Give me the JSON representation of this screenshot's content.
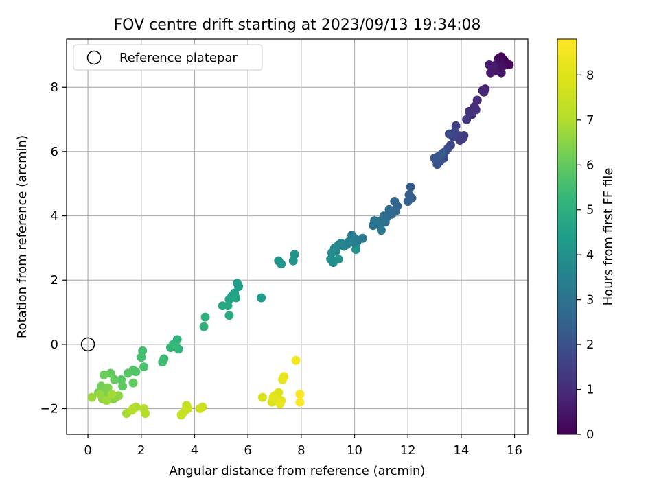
{
  "chart_data": {
    "type": "scatter",
    "title": "FOV centre drift starting at 2023/09/13 19:34:08",
    "xlabel": "Angular distance from reference (arcmin)",
    "ylabel": "Rotation from reference (arcmin)",
    "xlim": [
      -0.8,
      16.5
    ],
    "ylim": [
      -2.8,
      9.5
    ],
    "xticks": [
      0,
      2,
      4,
      6,
      8,
      10,
      12,
      14,
      16
    ],
    "yticks": [
      -2,
      0,
      2,
      4,
      6,
      8
    ],
    "grid": true,
    "legend": {
      "position": "top-left",
      "label": "Reference platepar",
      "marker": "open-circle"
    },
    "reference_point": {
      "x": 0,
      "y": 0
    },
    "colorbar": {
      "label": "Hours from first FF file",
      "colormap": "viridis",
      "range": [
        0,
        8.8
      ],
      "ticks": [
        0,
        1,
        2,
        3,
        4,
        5,
        6,
        7,
        8
      ]
    },
    "series": [
      {
        "points": [
          [
            15.6,
            8.85,
            0.0
          ],
          [
            15.7,
            8.75,
            0.05
          ],
          [
            15.5,
            8.95,
            0.1
          ],
          [
            15.8,
            8.7,
            0.15
          ],
          [
            15.4,
            8.9,
            0.2
          ],
          [
            15.45,
            8.8,
            0.25
          ],
          [
            15.55,
            8.65,
            0.3
          ],
          [
            15.3,
            8.7,
            0.35
          ],
          [
            15.35,
            8.6,
            0.4
          ],
          [
            15.5,
            8.45,
            0.45
          ],
          [
            15.25,
            8.5,
            0.5
          ],
          [
            15.1,
            8.45,
            0.55
          ],
          [
            15.2,
            8.65,
            0.6
          ],
          [
            15.05,
            8.7,
            0.65
          ],
          [
            14.9,
            7.95,
            0.8
          ],
          [
            14.8,
            7.9,
            0.85
          ],
          [
            14.85,
            7.85,
            0.9
          ],
          [
            14.6,
            7.6,
            1.0
          ],
          [
            14.5,
            7.4,
            1.05
          ],
          [
            14.55,
            7.3,
            1.1
          ],
          [
            14.3,
            7.25,
            1.15
          ],
          [
            14.4,
            7.15,
            1.2
          ],
          [
            14.2,
            7.0,
            1.25
          ],
          [
            14.1,
            6.5,
            1.35
          ],
          [
            14.05,
            6.4,
            1.4
          ],
          [
            13.95,
            6.35,
            1.45
          ],
          [
            13.9,
            6.5,
            1.5
          ],
          [
            13.8,
            6.8,
            1.55
          ],
          [
            13.75,
            6.6,
            1.6
          ],
          [
            13.7,
            6.45,
            1.65
          ],
          [
            13.6,
            6.2,
            1.7
          ],
          [
            13.5,
            6.1,
            1.75
          ],
          [
            13.55,
            6.55,
            1.8
          ],
          [
            13.4,
            6.0,
            1.85
          ],
          [
            13.35,
            5.8,
            1.9
          ],
          [
            13.2,
            5.7,
            1.95
          ],
          [
            13.1,
            5.6,
            2.0
          ],
          [
            13.0,
            5.8,
            2.05
          ],
          [
            13.15,
            5.85,
            2.1
          ],
          [
            13.05,
            5.75,
            2.15
          ],
          [
            13.3,
            5.95,
            2.2
          ],
          [
            12.1,
            4.9,
            2.3
          ],
          [
            12.05,
            4.65,
            2.35
          ],
          [
            12.15,
            4.55,
            2.4
          ],
          [
            12.0,
            4.45,
            2.45
          ],
          [
            11.6,
            4.3,
            2.5
          ],
          [
            11.5,
            4.45,
            2.55
          ],
          [
            11.55,
            4.15,
            2.6
          ],
          [
            11.4,
            4.05,
            2.65
          ],
          [
            11.3,
            4.2,
            2.7
          ],
          [
            11.2,
            3.95,
            2.75
          ],
          [
            11.1,
            4.0,
            2.8
          ],
          [
            11.15,
            3.8,
            2.85
          ],
          [
            11.0,
            3.85,
            2.9
          ],
          [
            10.95,
            3.7,
            2.95
          ],
          [
            10.85,
            3.75,
            3.0
          ],
          [
            10.7,
            3.7,
            3.05
          ],
          [
            10.75,
            3.85,
            3.1
          ],
          [
            11.0,
            3.55,
            3.15
          ],
          [
            10.3,
            3.3,
            3.2
          ],
          [
            10.1,
            3.2,
            3.25
          ],
          [
            10.0,
            3.3,
            3.3
          ],
          [
            9.9,
            3.4,
            3.35
          ],
          [
            10.05,
            3.1,
            3.4
          ],
          [
            9.8,
            3.2,
            3.45
          ],
          [
            9.7,
            3.1,
            3.5
          ],
          [
            9.6,
            3.05,
            3.55
          ],
          [
            9.5,
            3.15,
            3.6
          ],
          [
            9.4,
            3.1,
            3.65
          ],
          [
            9.3,
            2.9,
            3.7
          ],
          [
            9.25,
            3.0,
            3.75
          ],
          [
            9.15,
            2.85,
            3.8
          ],
          [
            9.1,
            2.65,
            3.85
          ],
          [
            9.2,
            2.55,
            3.9
          ],
          [
            9.4,
            2.65,
            3.95
          ],
          [
            10.05,
            2.95,
            4.0
          ],
          [
            7.75,
            2.8,
            4.05
          ],
          [
            7.7,
            2.6,
            4.1
          ],
          [
            7.15,
            2.6,
            4.15
          ],
          [
            7.25,
            2.5,
            4.2
          ],
          [
            6.5,
            1.45,
            4.35
          ],
          [
            5.6,
            1.9,
            4.4
          ],
          [
            5.65,
            1.8,
            4.45
          ],
          [
            5.5,
            1.6,
            4.5
          ],
          [
            5.4,
            1.5,
            4.55
          ],
          [
            5.3,
            1.4,
            4.6
          ],
          [
            5.55,
            1.45,
            4.65
          ],
          [
            5.05,
            1.2,
            4.7
          ],
          [
            5.25,
            1.2,
            4.75
          ],
          [
            5.3,
            0.9,
            4.8
          ],
          [
            4.4,
            0.85,
            5.0
          ],
          [
            4.35,
            0.55,
            5.05
          ],
          [
            3.35,
            0.15,
            5.1
          ],
          [
            3.4,
            -0.15,
            5.15
          ],
          [
            3.2,
            0.0,
            5.2
          ],
          [
            3.1,
            -0.1,
            5.25
          ],
          [
            3.3,
            -0.05,
            5.3
          ],
          [
            2.85,
            -0.45,
            5.4
          ],
          [
            2.8,
            -0.55,
            5.45
          ],
          [
            2.05,
            -0.2,
            5.5
          ],
          [
            2.0,
            -0.4,
            5.55
          ],
          [
            2.1,
            -0.7,
            5.6
          ],
          [
            1.8,
            -0.85,
            5.7
          ],
          [
            1.7,
            -0.8,
            5.75
          ],
          [
            1.5,
            -0.9,
            5.8
          ],
          [
            1.25,
            -1.1,
            5.85
          ],
          [
            1.3,
            -1.3,
            5.9
          ],
          [
            1.7,
            -1.2,
            5.95
          ],
          [
            1.0,
            -1.1,
            6.0
          ],
          [
            0.85,
            -0.9,
            6.05
          ],
          [
            0.6,
            -0.95,
            6.1
          ],
          [
            0.4,
            -1.5,
            6.15
          ],
          [
            0.5,
            -1.3,
            6.2
          ],
          [
            0.6,
            -1.45,
            6.25
          ],
          [
            0.7,
            -1.55,
            6.3
          ],
          [
            0.75,
            -1.35,
            6.35
          ],
          [
            0.85,
            -1.6,
            6.4
          ],
          [
            0.95,
            -1.7,
            6.45
          ],
          [
            1.05,
            -1.65,
            6.5
          ],
          [
            1.15,
            -1.6,
            6.55
          ],
          [
            0.55,
            -1.7,
            6.6
          ],
          [
            0.45,
            -1.55,
            6.65
          ],
          [
            0.15,
            -1.65,
            6.7
          ],
          [
            0.7,
            -1.75,
            6.75
          ],
          [
            0.9,
            -1.55,
            6.8
          ],
          [
            1.45,
            -2.15,
            6.85
          ],
          [
            1.7,
            -2.0,
            6.9
          ],
          [
            1.8,
            -1.95,
            6.95
          ],
          [
            2.1,
            -2.0,
            7.0
          ],
          [
            2.15,
            -2.15,
            7.05
          ],
          [
            1.65,
            -2.05,
            7.1
          ],
          [
            3.7,
            -1.9,
            7.3
          ],
          [
            3.65,
            -2.05,
            7.35
          ],
          [
            3.55,
            -2.15,
            7.4
          ],
          [
            3.5,
            -2.2,
            7.45
          ],
          [
            3.75,
            -2.0,
            7.5
          ],
          [
            4.2,
            -2.0,
            7.55
          ],
          [
            4.3,
            -1.95,
            7.6
          ],
          [
            6.55,
            -1.65,
            7.75
          ],
          [
            6.9,
            -1.8,
            7.85
          ],
          [
            7.0,
            -1.6,
            7.9
          ],
          [
            7.15,
            -1.5,
            7.95
          ],
          [
            7.25,
            -1.75,
            8.0
          ],
          [
            7.05,
            -1.7,
            8.05
          ],
          [
            6.95,
            -1.65,
            8.1
          ],
          [
            7.3,
            -1.1,
            8.2
          ],
          [
            7.35,
            -1.0,
            8.25
          ],
          [
            7.2,
            -1.85,
            8.3
          ],
          [
            7.8,
            -0.5,
            8.55
          ],
          [
            7.95,
            -1.55,
            8.65
          ],
          [
            7.95,
            -1.8,
            8.75
          ]
        ]
      }
    ]
  }
}
